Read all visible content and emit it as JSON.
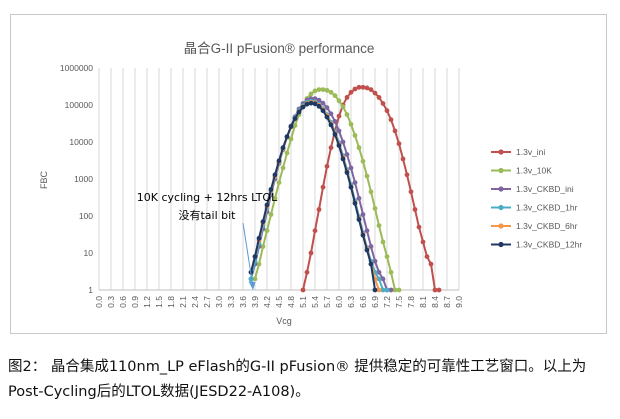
{
  "chart_data": {
    "type": "scatter",
    "title": "晶合G-II pFusion® performance",
    "xlabel": "Vcg",
    "ylabel": "FBC",
    "x_ticks": [
      "0.0",
      "0.3",
      "0.6",
      "0.9",
      "1.2",
      "1.5",
      "1.8",
      "2.1",
      "2.4",
      "2.7",
      "3.0",
      "3.3",
      "3.6",
      "3.9",
      "4.2",
      "4.5",
      "4.8",
      "5.1",
      "5.4",
      "5.7",
      "6.0",
      "6.3",
      "6.6",
      "6.9",
      "7.2",
      "7.5",
      "7.8",
      "8.1",
      "8.4",
      "8.7",
      "9.0"
    ],
    "xlim": [
      0.0,
      9.0
    ],
    "y_ticks": [
      "1",
      "10",
      "100",
      "1000",
      "10000",
      "100000",
      "1000000"
    ],
    "ylim": [
      1,
      1000000
    ],
    "y_scale": "log",
    "grid": "vertical",
    "legend_position": "right",
    "annotation": {
      "text": [
        "10K cycling + 12hrs LTOL",
        "没有tail bit"
      ],
      "arrow_to": [
        3.85,
        1.2
      ]
    },
    "series": [
      {
        "name": "1.3v_ini",
        "color": "#c0504d",
        "x": [
          5.1,
          5.2,
          5.3,
          5.4,
          5.5,
          5.6,
          5.7,
          5.8,
          5.9,
          6.0,
          6.1,
          6.2,
          6.3,
          6.4,
          6.5,
          6.6,
          6.7,
          6.8,
          6.9,
          7.0,
          7.1,
          7.2,
          7.3,
          7.4,
          7.5,
          7.6,
          7.7,
          7.8,
          7.9,
          8.0,
          8.1,
          8.2,
          8.3,
          8.4,
          8.5
        ],
        "y": [
          1,
          3,
          10,
          40,
          150,
          600,
          2200,
          7000,
          20000,
          50000,
          100000,
          160000,
          220000,
          270000,
          300000,
          300000,
          290000,
          260000,
          210000,
          160000,
          110000,
          70000,
          40000,
          20000,
          9000,
          3500,
          1300,
          450,
          150,
          50,
          20,
          8,
          5,
          1,
          1
        ]
      },
      {
        "name": "1.3v_10K",
        "color": "#9bbb59",
        "x": [
          3.9,
          4.0,
          4.1,
          4.2,
          4.3,
          4.4,
          4.5,
          4.6,
          4.7,
          4.8,
          4.9,
          5.0,
          5.1,
          5.2,
          5.3,
          5.4,
          5.5,
          5.6,
          5.7,
          5.8,
          5.9,
          6.0,
          6.1,
          6.2,
          6.3,
          6.4,
          6.5,
          6.6,
          6.7,
          6.8,
          6.9,
          7.0,
          7.1,
          7.2,
          7.3,
          7.4,
          7.5
        ],
        "y": [
          2,
          5,
          15,
          40,
          110,
          300,
          800,
          2000,
          5000,
          12000,
          28000,
          55000,
          100000,
          150000,
          200000,
          240000,
          260000,
          260000,
          250000,
          220000,
          180000,
          130000,
          90000,
          55000,
          30000,
          15000,
          7000,
          3000,
          1200,
          450,
          160,
          55,
          20,
          8,
          3,
          1,
          1
        ]
      },
      {
        "name": "1.3v_CKBD_ini",
        "color": "#8064a2",
        "x": [
          3.8,
          3.9,
          4.0,
          4.1,
          4.2,
          4.3,
          4.4,
          4.5,
          4.6,
          4.7,
          4.8,
          4.9,
          5.0,
          5.1,
          5.2,
          5.3,
          5.4,
          5.5,
          5.6,
          5.7,
          5.8,
          5.9,
          6.0,
          6.1,
          6.2,
          6.3,
          6.4,
          6.5,
          6.6,
          6.7,
          6.8,
          6.9,
          7.0,
          7.1,
          7.2,
          7.3
        ],
        "y": [
          2,
          5,
          15,
          45,
          130,
          380,
          1000,
          2600,
          6200,
          13500,
          27000,
          48000,
          78000,
          110000,
          135000,
          148000,
          148000,
          135000,
          112000,
          85000,
          58000,
          36000,
          20000,
          10000,
          4600,
          2000,
          800,
          300,
          110,
          40,
          15,
          6,
          3,
          2,
          1,
          1
        ]
      },
      {
        "name": "1.3v_CKBD_1hr",
        "color": "#4bacc6",
        "x": [
          3.8,
          3.9,
          4.0,
          4.1,
          4.2,
          4.3,
          4.4,
          4.5,
          4.6,
          4.7,
          4.8,
          4.9,
          5.0,
          5.1,
          5.2,
          5.3,
          5.4,
          5.5,
          5.6,
          5.7,
          5.8,
          5.9,
          6.0,
          6.1,
          6.2,
          6.3,
          6.4,
          6.5,
          6.6,
          6.7,
          6.8,
          6.9,
          7.0,
          7.1,
          7.2
        ],
        "y": [
          2,
          6,
          18,
          55,
          160,
          450,
          1150,
          2800,
          6500,
          13500,
          26000,
          45000,
          70000,
          97000,
          118000,
          126000,
          122000,
          105000,
          80000,
          55000,
          34000,
          19000,
          9500,
          4300,
          1800,
          700,
          260,
          95,
          35,
          14,
          6,
          3,
          2,
          1,
          1
        ]
      },
      {
        "name": "1.3v_CKBD_6hr",
        "color": "#f79646",
        "x": [
          3.8,
          3.9,
          4.0,
          4.1,
          4.2,
          4.3,
          4.4,
          4.5,
          4.6,
          4.7,
          4.8,
          4.9,
          5.0,
          5.1,
          5.2,
          5.3,
          5.4,
          5.5,
          5.6,
          5.7,
          5.8,
          5.9,
          6.0,
          6.1,
          6.2,
          6.3,
          6.4,
          6.5,
          6.6,
          6.7,
          6.8,
          6.9,
          7.0
        ],
        "y": [
          3,
          8,
          22,
          65,
          180,
          480,
          1200,
          2900,
          6600,
          13500,
          25500,
          43000,
          66000,
          90000,
          110000,
          118000,
          114000,
          98000,
          75000,
          51000,
          31000,
          17000,
          8500,
          3800,
          1600,
          620,
          230,
          85,
          32,
          13,
          5,
          2,
          1
        ]
      },
      {
        "name": "1.3v_CKBD_12hr",
        "color": "#1f3864",
        "x": [
          3.8,
          3.9,
          4.0,
          4.1,
          4.2,
          4.3,
          4.4,
          4.5,
          4.6,
          4.7,
          4.8,
          4.9,
          5.0,
          5.1,
          5.2,
          5.3,
          5.4,
          5.5,
          5.6,
          5.7,
          5.8,
          5.9,
          6.0,
          6.1,
          6.2,
          6.3,
          6.4,
          6.5,
          6.6,
          6.7,
          6.8,
          6.9
        ],
        "y": [
          3,
          8,
          25,
          70,
          200,
          520,
          1300,
          3100,
          7000,
          14000,
          26000,
          43000,
          65000,
          88000,
          105000,
          112000,
          108000,
          92000,
          70000,
          47000,
          29000,
          16000,
          8000,
          3500,
          1500,
          600,
          220,
          80,
          30,
          12,
          5,
          1
        ]
      }
    ]
  },
  "caption": {
    "line1": "图2： 晶合集成110nm_LP eFlash的G-II pFusion® 提供稳定的可靠性工艺窗口。以上为",
    "line2": "Post-Cycling后的LTOL数据(JESD22-A108)。"
  }
}
